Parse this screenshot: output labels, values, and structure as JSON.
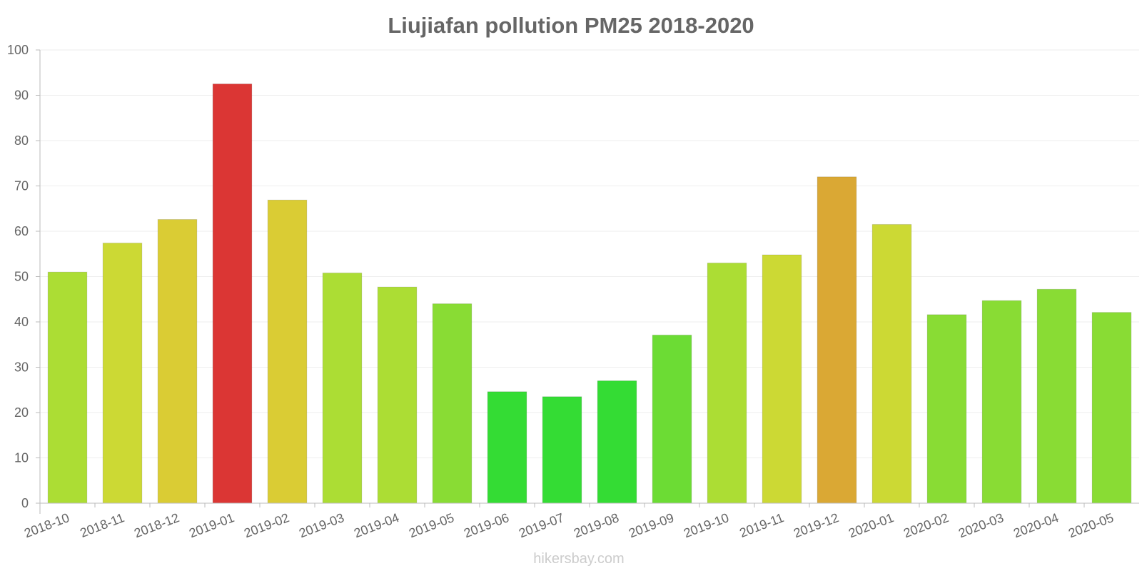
{
  "chart_data": {
    "type": "bar",
    "title": "Liujiafan pollution PM25 2018-2020",
    "xlabel": "",
    "ylabel": "",
    "ylim": [
      0,
      100
    ],
    "yticks": [
      0,
      10,
      20,
      30,
      40,
      50,
      60,
      70,
      80,
      90,
      100
    ],
    "categories": [
      "2018-10",
      "2018-11",
      "2018-12",
      "2019-01",
      "2019-02",
      "2019-03",
      "2019-04",
      "2019-05",
      "2019-06",
      "2019-07",
      "2019-08",
      "2019-09",
      "2019-10",
      "2019-11",
      "2019-12",
      "2020-01",
      "2020-02",
      "2020-03",
      "2020-04",
      "2020-05"
    ],
    "values": [
      51,
      57.4,
      62.6,
      92.5,
      66.9,
      50.8,
      47.7,
      44,
      24.6,
      23.5,
      27,
      37.1,
      53,
      54.8,
      72,
      61.5,
      41.6,
      44.7,
      47.2,
      42.1
    ],
    "colors": [
      "#acdd34",
      "#ccd934",
      "#dacc34",
      "#db3634",
      "#dacc34",
      "#acdd34",
      "#acdd34",
      "#89dc34",
      "#34dc34",
      "#34dc34",
      "#34dc34",
      "#6cdc34",
      "#acdd34",
      "#ccd934",
      "#daa834",
      "#ccd934",
      "#89dc34",
      "#89dc34",
      "#89dc34",
      "#89dc34"
    ],
    "grid": true,
    "legend": "none"
  },
  "footer": {
    "watermark": "hikersbay.com"
  }
}
